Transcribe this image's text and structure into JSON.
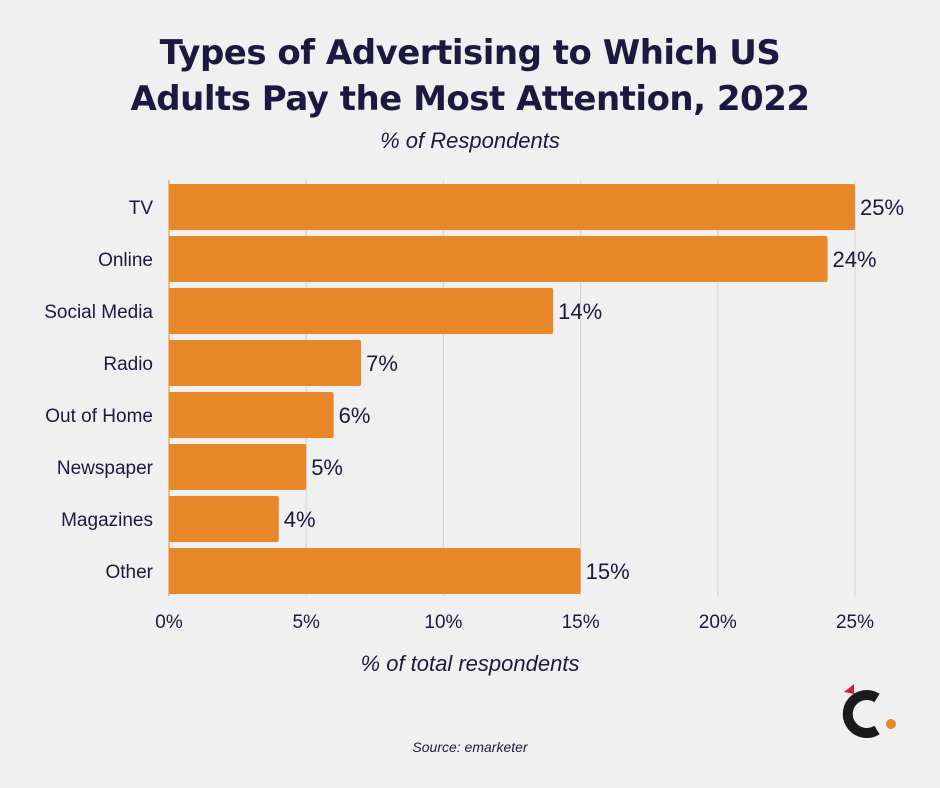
{
  "header": {
    "title_line1": "Types of Advertising to Which US",
    "title_line2": "Adults Pay the Most Attention, 2022",
    "subtitle": "% of Respondents"
  },
  "footer": {
    "source": "Source: emarketer"
  },
  "logo": {
    "icon": "brand-c-logo-icon"
  },
  "colors": {
    "bar": "#e8862a",
    "text": "#1c1941",
    "grid": "#d2d2d2",
    "logo_red": "#d21f3c",
    "logo_dot": "#e8862a"
  },
  "chart_data": {
    "type": "bar",
    "orientation": "horizontal",
    "title": "Types of Advertising to Which US Adults Pay the Most Attention, 2022",
    "subtitle": "% of Respondents",
    "xlabel": "% of total respondents",
    "ylabel": "",
    "categories": [
      "TV",
      "Online",
      "Social Media",
      "Radio",
      "Out of Home",
      "Newspaper",
      "Magazines",
      "Other"
    ],
    "values": [
      25,
      24,
      14,
      7,
      6,
      5,
      4,
      15
    ],
    "value_labels": [
      "25%",
      "24%",
      "14%",
      "7%",
      "6%",
      "5%",
      "4%",
      "15%"
    ],
    "xlim": [
      0,
      25
    ],
    "xticks": [
      0,
      5,
      10,
      15,
      20,
      25
    ],
    "xtick_labels": [
      "0%",
      "5%",
      "10%",
      "15%",
      "20%",
      "25%"
    ],
    "grid": true
  }
}
